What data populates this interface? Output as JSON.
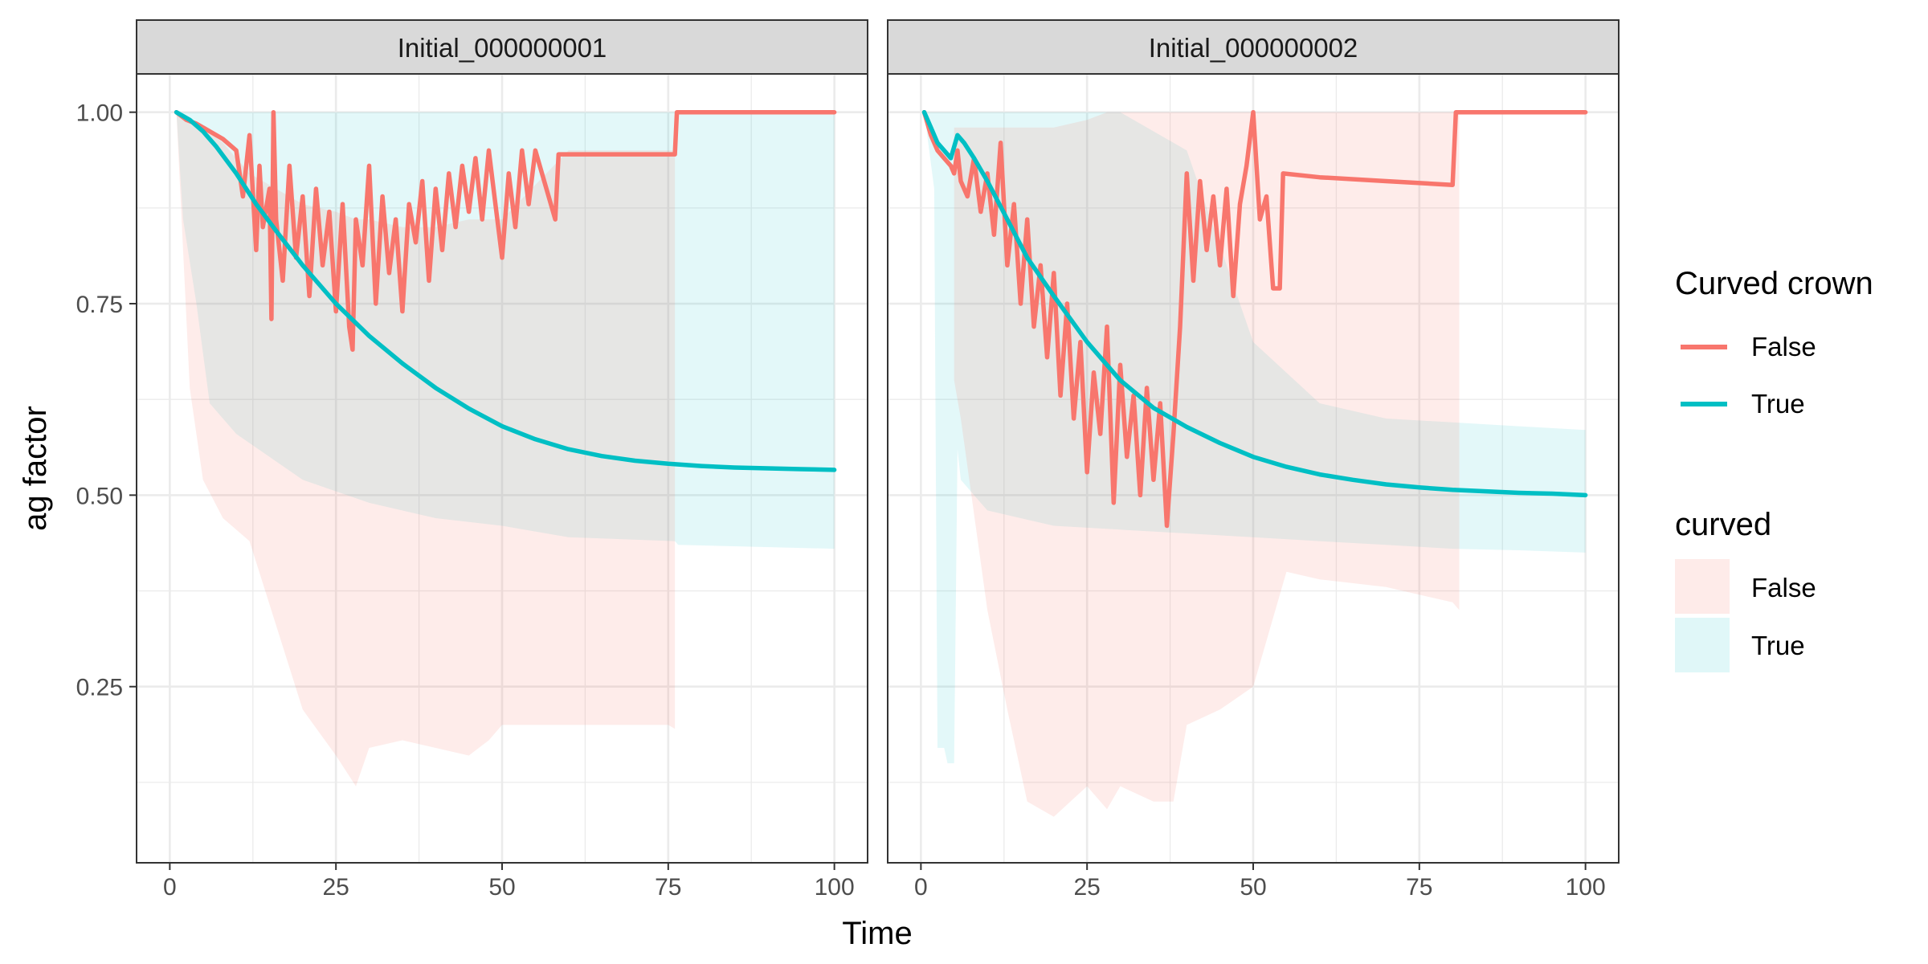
{
  "chart_data": {
    "type": "line",
    "xlabel": "Time",
    "ylabel": "ag factor",
    "xlim": [
      -5,
      105
    ],
    "ylim": [
      0.02,
      1.05
    ],
    "x_ticks": [
      0,
      25,
      50,
      75,
      100
    ],
    "x_tick_labels": [
      "0",
      "25",
      "50",
      "75",
      "100"
    ],
    "y_ticks": [
      0.25,
      0.5,
      0.75,
      1.0
    ],
    "y_tick_labels": [
      "0.25",
      "0.50",
      "0.75",
      "1.00"
    ],
    "grid": true,
    "legend_position": "right",
    "colors": {
      "False": "#F8766D",
      "True": "#00BFC4"
    },
    "legends": [
      {
        "title": "Curved crown",
        "kind": "line",
        "entries": [
          "False",
          "True"
        ]
      },
      {
        "title": "curved",
        "kind": "fill",
        "entries": [
          "False",
          "True"
        ]
      }
    ],
    "panels": [
      {
        "strip": "Initial_000000001",
        "series": [
          {
            "name": "True",
            "role": "line",
            "x": [
              1,
              3,
              5,
              7,
              10,
              13,
              16,
              20,
              25,
              30,
              35,
              40,
              45,
              50,
              55,
              60,
              65,
              70,
              75,
              80,
              85,
              90,
              95,
              100
            ],
            "y": [
              1.0,
              0.99,
              0.975,
              0.955,
              0.92,
              0.88,
              0.845,
              0.8,
              0.75,
              0.708,
              0.672,
              0.64,
              0.613,
              0.59,
              0.573,
              0.56,
              0.551,
              0.545,
              0.541,
              0.538,
              0.536,
              0.535,
              0.534,
              0.533
            ]
          },
          {
            "name": "False",
            "role": "line",
            "x": [
              1,
              2.5,
              4,
              6,
              8,
              10,
              11,
              12,
              13,
              13.5,
              14,
              15,
              15.3,
              15.6,
              16,
              17,
              18,
              19,
              20,
              21,
              22,
              23,
              24,
              25,
              26,
              27,
              27.5,
              28,
              29,
              30,
              31,
              32,
              33,
              34,
              35,
              36,
              37,
              38,
              39,
              40,
              41,
              42,
              43,
              44,
              45,
              46,
              47,
              48,
              49,
              50,
              51,
              52,
              53,
              54,
              55,
              58,
              58.5,
              76,
              76.3,
              100
            ],
            "y": [
              1.0,
              0.99,
              0.985,
              0.975,
              0.965,
              0.95,
              0.89,
              0.97,
              0.82,
              0.93,
              0.85,
              0.9,
              0.73,
              1.0,
              0.86,
              0.78,
              0.93,
              0.81,
              0.89,
              0.76,
              0.9,
              0.8,
              0.87,
              0.74,
              0.88,
              0.72,
              0.69,
              0.86,
              0.8,
              0.93,
              0.75,
              0.89,
              0.79,
              0.86,
              0.74,
              0.88,
              0.83,
              0.91,
              0.78,
              0.9,
              0.82,
              0.92,
              0.85,
              0.93,
              0.87,
              0.94,
              0.86,
              0.95,
              0.88,
              0.81,
              0.92,
              0.85,
              0.95,
              0.88,
              0.95,
              0.86,
              0.945,
              0.945,
              1.0,
              1.0
            ]
          },
          {
            "name": "True",
            "role": "ribbon",
            "x": [
              1,
              2,
              4,
              6,
              10,
              20,
              30,
              40,
              50,
              60,
              76,
              76.5,
              100
            ],
            "lower": [
              1.0,
              0.86,
              0.75,
              0.62,
              0.58,
              0.52,
              0.49,
              0.47,
              0.46,
              0.445,
              0.44,
              0.435,
              0.43
            ],
            "upper": [
              1.0,
              1.0,
              1.0,
              1.0,
              1.0,
              1.0,
              1.0,
              1.0,
              1.0,
              1.0,
              1.0,
              1.0,
              1.0
            ]
          },
          {
            "name": "False",
            "role": "ribbon",
            "x": [
              1,
              3,
              5,
              8,
              12,
              16,
              20,
              25,
              28,
              30,
              35,
              40,
              45,
              48,
              50,
              60,
              70,
              75,
              76
            ],
            "lower": [
              1.0,
              0.64,
              0.52,
              0.47,
              0.44,
              0.33,
              0.22,
              0.16,
              0.12,
              0.17,
              0.18,
              0.17,
              0.16,
              0.18,
              0.2,
              0.2,
              0.2,
              0.2,
              0.195
            ],
            "upper": [
              1.0,
              0.99,
              0.98,
              0.96,
              0.92,
              0.9,
              0.88,
              0.87,
              0.86,
              0.86,
              0.85,
              0.85,
              0.86,
              0.86,
              0.86,
              0.95,
              0.95,
              0.95,
              0.95
            ]
          }
        ]
      },
      {
        "strip": "Initial_000000002",
        "series": [
          {
            "name": "True",
            "role": "line",
            "x": [
              0.5,
              1.5,
              2.5,
              3.5,
              4.5,
              5.5,
              6.5,
              8,
              10,
              13,
              16,
              20,
              25,
              30,
              35,
              40,
              45,
              50,
              55,
              60,
              65,
              70,
              75,
              80,
              85,
              90,
              95,
              100
            ],
            "y": [
              1.0,
              0.98,
              0.96,
              0.95,
              0.94,
              0.97,
              0.96,
              0.94,
              0.91,
              0.86,
              0.81,
              0.76,
              0.7,
              0.65,
              0.614,
              0.589,
              0.568,
              0.55,
              0.537,
              0.527,
              0.52,
              0.514,
              0.51,
              0.507,
              0.505,
              0.503,
              0.502,
              0.5
            ]
          },
          {
            "name": "False",
            "role": "line",
            "x": [
              0.5,
              1.5,
              2.5,
              3.5,
              4.5,
              5,
              5.5,
              6,
              7,
              8,
              9,
              10,
              11,
              12,
              13,
              14,
              15,
              16,
              17,
              18,
              19,
              20,
              21,
              22,
              23,
              24,
              25,
              26,
              27,
              28,
              29,
              30,
              31,
              32,
              33,
              34,
              35,
              36,
              37,
              38,
              39,
              40,
              41,
              42,
              43,
              44,
              45,
              46,
              47,
              48,
              49,
              50,
              51,
              52,
              53,
              54,
              54.5,
              60,
              70,
              80,
              80.5,
              100
            ],
            "y": [
              1.0,
              0.97,
              0.95,
              0.94,
              0.93,
              0.92,
              0.95,
              0.91,
              0.89,
              0.94,
              0.87,
              0.92,
              0.84,
              0.96,
              0.8,
              0.88,
              0.75,
              0.86,
              0.72,
              0.8,
              0.68,
              0.79,
              0.63,
              0.75,
              0.6,
              0.7,
              0.53,
              0.66,
              0.58,
              0.72,
              0.49,
              0.67,
              0.55,
              0.63,
              0.5,
              0.64,
              0.52,
              0.62,
              0.46,
              0.58,
              0.72,
              0.92,
              0.78,
              0.91,
              0.82,
              0.89,
              0.8,
              0.9,
              0.76,
              0.88,
              0.93,
              1.0,
              0.86,
              0.89,
              0.77,
              0.77,
              0.92,
              0.915,
              0.91,
              0.905,
              1.0,
              1.0
            ]
          },
          {
            "name": "True",
            "role": "ribbon",
            "x": [
              0.5,
              2,
              2.5,
              3.5,
              4,
              5,
              5.5,
              6,
              8,
              10,
              15,
              20,
              30,
              40,
              50,
              60,
              70,
              80,
              90,
              100
            ],
            "lower": [
              1.0,
              0.9,
              0.17,
              0.17,
              0.15,
              0.15,
              0.56,
              0.52,
              0.5,
              0.48,
              0.47,
              0.46,
              0.455,
              0.45,
              0.445,
              0.44,
              0.435,
              0.43,
              0.428,
              0.425
            ],
            "upper": [
              1.0,
              1.0,
              1.0,
              1.0,
              1.0,
              1.0,
              1.0,
              1.0,
              1.0,
              1.0,
              1.0,
              1.0,
              1.0,
              0.95,
              0.7,
              0.62,
              0.6,
              0.595,
              0.59,
              0.585
            ]
          },
          {
            "name": "False",
            "role": "ribbon",
            "x": [
              5,
              6,
              10,
              13,
              16,
              20,
              25,
              28,
              30,
              35,
              38,
              40,
              45,
              50,
              55,
              60,
              70,
              80,
              81
            ],
            "lower": [
              0.65,
              0.6,
              0.35,
              0.22,
              0.1,
              0.08,
              0.12,
              0.09,
              0.12,
              0.1,
              0.1,
              0.2,
              0.22,
              0.25,
              0.4,
              0.39,
              0.38,
              0.36,
              0.35
            ],
            "upper": [
              0.98,
              0.98,
              0.98,
              0.98,
              0.98,
              0.98,
              0.99,
              1.0,
              1.0,
              1.0,
              1.0,
              1.0,
              1.0,
              1.0,
              1.0,
              1.0,
              1.0,
              1.0,
              1.0
            ]
          }
        ]
      }
    ]
  }
}
